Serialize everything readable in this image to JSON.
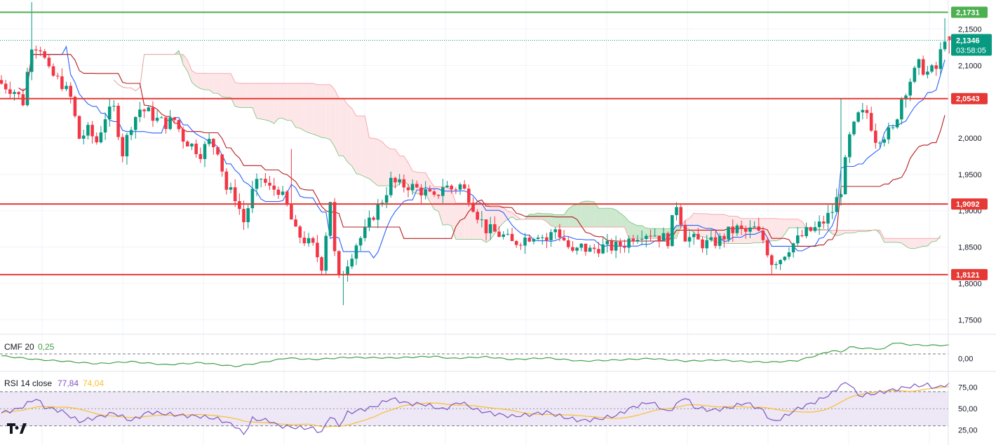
{
  "colors": {
    "up": "#089981",
    "down": "#f23645",
    "tenkan": "#2962ff",
    "kijun": "#b71c1c",
    "span_a": "#81c784",
    "span_b": "#f7a1a9",
    "cloud_bull": "#c8e6c9",
    "cloud_bear": "#fde3e5",
    "cmf": "#43a047",
    "rsi": "#7e57c2",
    "rsi_ma": "#fbc02d",
    "rsi_band": "#ede7f6",
    "resistance_green": "#4caf50",
    "resistance_red": "#e53935",
    "axis_text": "#131722"
  },
  "legends": {
    "cmf_label": "CMF 20",
    "cmf_value": "0,25",
    "rsi_label": "RSI 14 close",
    "rsi_value": "77,84",
    "rsi_ma_value": "74,04"
  },
  "badges": {
    "price": "2,1346",
    "countdown": "03:58:05"
  },
  "logo": "TV",
  "chart_data": [
    {
      "type": "candlestick",
      "ylim": [
        1.73,
        2.19
      ],
      "price_ticks": [
        "2,1500",
        "2,1000",
        "2,0000",
        "1,9500",
        "1,9000",
        "1,8500",
        "1,8000",
        "1,7500"
      ],
      "price_tick_values": [
        2.15,
        2.1,
        2.0,
        1.95,
        1.9,
        1.85,
        1.8,
        1.75
      ],
      "levels": [
        {
          "value": 2.1731,
          "label": "2,1731",
          "color": "green"
        },
        {
          "value": 2.0543,
          "label": "2,0543",
          "color": "red"
        },
        {
          "value": 1.9092,
          "label": "1,9092",
          "color": "red"
        },
        {
          "value": 1.8121,
          "label": "1,8121",
          "color": "red"
        }
      ],
      "current_price": 2.1346,
      "waypoints": [
        [
          0,
          2.075
        ],
        [
          3,
          2.065
        ],
        [
          5,
          2.05
        ],
        [
          7,
          2.13
        ],
        [
          9,
          2.125
        ],
        [
          11,
          2.09
        ],
        [
          14,
          2.075
        ],
        [
          16,
          2.055
        ],
        [
          18,
          2.0
        ],
        [
          20,
          2.01
        ],
        [
          22,
          1.995
        ],
        [
          24,
          2.03
        ],
        [
          26,
          2.04
        ],
        [
          28,
          1.98
        ],
        [
          30,
          2.02
        ],
        [
          32,
          2.04
        ],
        [
          34,
          2.035
        ],
        [
          36,
          2.025
        ],
        [
          38,
          2.02
        ],
        [
          40,
          2.025
        ],
        [
          42,
          2.0
        ],
        [
          44,
          1.99
        ],
        [
          46,
          1.98
        ],
        [
          48,
          1.995
        ],
        [
          50,
          1.985
        ],
        [
          52,
          1.93
        ],
        [
          54,
          1.92
        ],
        [
          56,
          1.885
        ],
        [
          58,
          1.925
        ],
        [
          60,
          1.945
        ],
        [
          62,
          1.93
        ],
        [
          64,
          1.93
        ],
        [
          66,
          1.905
        ],
        [
          68,
          1.87
        ],
        [
          70,
          1.86
        ],
        [
          72,
          1.85
        ],
        [
          74,
          1.825
        ],
        [
          76,
          1.915
        ],
        [
          77,
          1.84
        ],
        [
          78,
          1.805
        ],
        [
          80,
          1.83
        ],
        [
          82,
          1.855
        ],
        [
          84,
          1.87
        ],
        [
          86,
          1.895
        ],
        [
          88,
          1.915
        ],
        [
          90,
          1.94
        ],
        [
          92,
          1.935
        ],
        [
          94,
          1.935
        ],
        [
          96,
          1.93
        ],
        [
          98,
          1.925
        ],
        [
          100,
          1.915
        ],
        [
          102,
          1.935
        ],
        [
          104,
          1.93
        ],
        [
          106,
          1.935
        ],
        [
          108,
          1.92
        ],
        [
          110,
          1.895
        ],
        [
          112,
          1.875
        ],
        [
          114,
          1.87
        ],
        [
          116,
          1.865
        ],
        [
          118,
          1.855
        ],
        [
          120,
          1.86
        ],
        [
          122,
          1.865
        ],
        [
          124,
          1.87
        ],
        [
          126,
          1.86
        ],
        [
          128,
          1.875
        ],
        [
          130,
          1.86
        ],
        [
          132,
          1.84
        ],
        [
          134,
          1.85
        ],
        [
          136,
          1.845
        ],
        [
          138,
          1.85
        ],
        [
          140,
          1.85
        ],
        [
          142,
          1.85
        ],
        [
          144,
          1.855
        ],
        [
          146,
          1.865
        ],
        [
          148,
          1.87
        ],
        [
          150,
          1.87
        ],
        [
          152,
          1.865
        ],
        [
          154,
          1.86
        ],
        [
          156,
          1.91
        ],
        [
          158,
          1.865
        ],
        [
          160,
          1.86
        ],
        [
          162,
          1.855
        ],
        [
          164,
          1.855
        ],
        [
          166,
          1.86
        ],
        [
          168,
          1.87
        ],
        [
          170,
          1.875
        ],
        [
          172,
          1.87
        ],
        [
          174,
          1.875
        ],
        [
          176,
          1.86
        ],
        [
          178,
          1.83
        ],
        [
          180,
          1.835
        ],
        [
          182,
          1.85
        ],
        [
          184,
          1.86
        ],
        [
          186,
          1.87
        ],
        [
          188,
          1.875
        ],
        [
          190,
          1.885
        ],
        [
          192,
          1.9
        ],
        [
          194,
          1.93
        ],
        [
          196,
          2.0
        ],
        [
          198,
          2.03
        ],
        [
          200,
          2.035
        ],
        [
          202,
          2.0
        ],
        [
          204,
          2.005
        ],
        [
          206,
          2.01
        ],
        [
          208,
          2.055
        ],
        [
          210,
          2.08
        ],
        [
          212,
          2.1
        ],
        [
          214,
          2.09
        ],
        [
          216,
          2.095
        ],
        [
          218,
          2.14
        ],
        [
          219,
          2.12
        ]
      ]
    },
    {
      "type": "line",
      "name": "CMF 20",
      "ylim": [
        -0.22,
        0.42
      ],
      "ticks": [
        "0,00"
      ],
      "tick_values": [
        0.0
      ],
      "waypoints": [
        [
          0,
          0.05
        ],
        [
          8,
          -0.02
        ],
        [
          14,
          -0.05
        ],
        [
          22,
          -0.1
        ],
        [
          30,
          -0.06
        ],
        [
          38,
          -0.12
        ],
        [
          46,
          -0.08
        ],
        [
          54,
          -0.15
        ],
        [
          60,
          -0.08
        ],
        [
          66,
          0.01
        ],
        [
          72,
          -0.02
        ],
        [
          80,
          0.02
        ],
        [
          90,
          0.01
        ],
        [
          100,
          0.04
        ],
        [
          104,
          0.0
        ],
        [
          112,
          0.03
        ],
        [
          118,
          -0.02
        ],
        [
          126,
          0.01
        ],
        [
          134,
          -0.05
        ],
        [
          142,
          -0.03
        ],
        [
          150,
          0.0
        ],
        [
          158,
          -0.05
        ],
        [
          166,
          -0.03
        ],
        [
          172,
          -0.06
        ],
        [
          178,
          -0.07
        ],
        [
          184,
          -0.04
        ],
        [
          188,
          0.05
        ],
        [
          192,
          0.15
        ],
        [
          194,
          0.12
        ],
        [
          196,
          0.22
        ],
        [
          198,
          0.2
        ],
        [
          200,
          0.19
        ],
        [
          204,
          0.18
        ],
        [
          206,
          0.3
        ],
        [
          210,
          0.26
        ],
        [
          214,
          0.25
        ],
        [
          219,
          0.25
        ]
      ]
    },
    {
      "type": "line",
      "name": "RSI 14 close",
      "ylim": [
        10,
        92
      ],
      "ticks": [
        "75,00",
        "50,00",
        "25,00"
      ],
      "tick_values": [
        75,
        50,
        25
      ],
      "band": [
        30,
        70
      ],
      "waypoints": [
        [
          0,
          45
        ],
        [
          4,
          50
        ],
        [
          8,
          62
        ],
        [
          10,
          52
        ],
        [
          14,
          47
        ],
        [
          18,
          35
        ],
        [
          22,
          40
        ],
        [
          26,
          45
        ],
        [
          30,
          36
        ],
        [
          34,
          46
        ],
        [
          38,
          44
        ],
        [
          42,
          42
        ],
        [
          46,
          41
        ],
        [
          50,
          38
        ],
        [
          54,
          30
        ],
        [
          56,
          20
        ],
        [
          58,
          38
        ],
        [
          62,
          36
        ],
        [
          64,
          30
        ],
        [
          68,
          28
        ],
        [
          72,
          27
        ],
        [
          74,
          22
        ],
        [
          76,
          42
        ],
        [
          78,
          30
        ],
        [
          80,
          45
        ],
        [
          86,
          52
        ],
        [
          90,
          62
        ],
        [
          94,
          56
        ],
        [
          98,
          55
        ],
        [
          102,
          49
        ],
        [
          106,
          58
        ],
        [
          110,
          48
        ],
        [
          114,
          44
        ],
        [
          118,
          41
        ],
        [
          122,
          43
        ],
        [
          126,
          46
        ],
        [
          130,
          40
        ],
        [
          134,
          36
        ],
        [
          138,
          38
        ],
        [
          142,
          42
        ],
        [
          146,
          52
        ],
        [
          150,
          58
        ],
        [
          154,
          46
        ],
        [
          158,
          64
        ],
        [
          160,
          52
        ],
        [
          164,
          48
        ],
        [
          168,
          51
        ],
        [
          172,
          57
        ],
        [
          176,
          48
        ],
        [
          178,
          35
        ],
        [
          180,
          38
        ],
        [
          184,
          50
        ],
        [
          188,
          58
        ],
        [
          192,
          68
        ],
        [
          194,
          78
        ],
        [
          196,
          80
        ],
        [
          198,
          65
        ],
        [
          202,
          68
        ],
        [
          206,
          72
        ],
        [
          210,
          76
        ],
        [
          214,
          78
        ],
        [
          216,
          74
        ],
        [
          218,
          78
        ],
        [
          219,
          77.84
        ]
      ]
    }
  ]
}
